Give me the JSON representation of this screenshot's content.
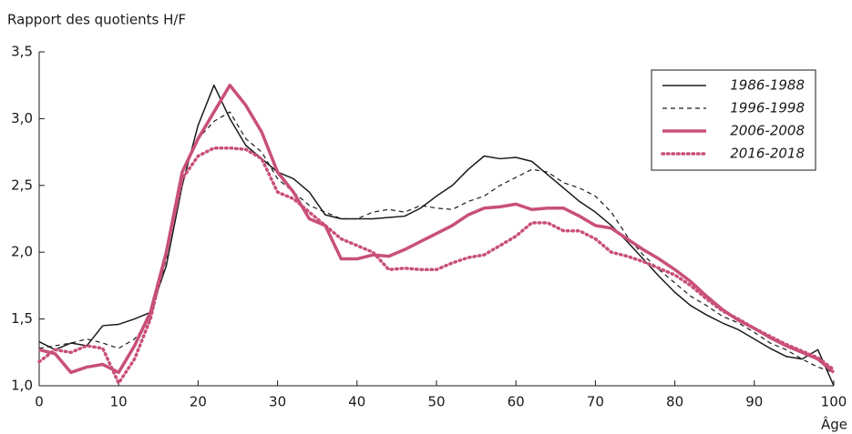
{
  "chart_data": {
    "type": "line",
    "ylabel": "Rapport des quotients H/F",
    "xlabel": "Âge",
    "x": [
      0,
      2,
      4,
      6,
      8,
      10,
      12,
      14,
      16,
      18,
      20,
      22,
      24,
      26,
      28,
      30,
      32,
      34,
      36,
      38,
      40,
      42,
      44,
      46,
      48,
      50,
      52,
      54,
      56,
      58,
      60,
      62,
      64,
      66,
      68,
      70,
      72,
      74,
      76,
      78,
      80,
      82,
      84,
      86,
      88,
      90,
      92,
      94,
      96,
      98,
      100
    ],
    "series": [
      {
        "name": "1986-1988",
        "color": "#1a1a1a",
        "line_style": "solid",
        "line_width": 1.5,
        "values": [
          1.33,
          1.27,
          1.32,
          1.3,
          1.45,
          1.46,
          1.5,
          1.55,
          1.9,
          2.5,
          2.95,
          3.25,
          3.0,
          2.8,
          2.7,
          2.6,
          2.55,
          2.45,
          2.28,
          2.25,
          2.25,
          2.25,
          2.26,
          2.27,
          2.33,
          2.42,
          2.5,
          2.62,
          2.72,
          2.7,
          2.71,
          2.68,
          2.58,
          2.48,
          2.38,
          2.3,
          2.2,
          2.08,
          1.95,
          1.82,
          1.7,
          1.6,
          1.53,
          1.47,
          1.42,
          1.35,
          1.28,
          1.22,
          1.2,
          1.27,
          1.0
        ]
      },
      {
        "name": "1996-1998",
        "color": "#1a1a1a",
        "line_style": "dashed",
        "line_width": 1.2,
        "values": [
          1.28,
          1.3,
          1.32,
          1.35,
          1.32,
          1.28,
          1.35,
          1.5,
          1.95,
          2.6,
          2.85,
          2.98,
          3.05,
          2.85,
          2.75,
          2.55,
          2.45,
          2.35,
          2.3,
          2.25,
          2.25,
          2.3,
          2.32,
          2.3,
          2.35,
          2.33,
          2.32,
          2.38,
          2.42,
          2.5,
          2.56,
          2.62,
          2.6,
          2.52,
          2.48,
          2.42,
          2.3,
          2.12,
          1.98,
          1.87,
          1.77,
          1.67,
          1.6,
          1.52,
          1.47,
          1.4,
          1.32,
          1.27,
          1.2,
          1.14,
          1.1
        ]
      },
      {
        "name": "2006-2008",
        "color": "#c8507a",
        "line_style": "solid",
        "line_width": 3.5,
        "values": [
          1.27,
          1.24,
          1.1,
          1.14,
          1.16,
          1.1,
          1.3,
          1.55,
          2.0,
          2.6,
          2.85,
          3.05,
          3.25,
          3.1,
          2.9,
          2.6,
          2.45,
          2.25,
          2.2,
          1.95,
          1.95,
          1.98,
          1.97,
          2.02,
          2.08,
          2.14,
          2.2,
          2.28,
          2.33,
          2.34,
          2.36,
          2.32,
          2.33,
          2.33,
          2.27,
          2.2,
          2.18,
          2.1,
          2.02,
          1.95,
          1.87,
          1.78,
          1.67,
          1.57,
          1.49,
          1.43,
          1.36,
          1.3,
          1.25,
          1.2,
          1.1
        ]
      },
      {
        "name": "2016-2018",
        "color": "#c8507a",
        "line_style": "dotted",
        "line_width": 3.5,
        "values": [
          1.18,
          1.27,
          1.25,
          1.3,
          1.28,
          1.02,
          1.2,
          1.5,
          2.0,
          2.55,
          2.72,
          2.78,
          2.78,
          2.77,
          2.7,
          2.45,
          2.4,
          2.3,
          2.2,
          2.1,
          2.05,
          2.0,
          1.87,
          1.88,
          1.87,
          1.87,
          1.92,
          1.96,
          1.98,
          2.05,
          2.12,
          2.22,
          2.22,
          2.16,
          2.16,
          2.1,
          2.0,
          1.97,
          1.93,
          1.88,
          1.83,
          1.75,
          1.65,
          1.56,
          1.5,
          1.43,
          1.37,
          1.31,
          1.26,
          1.21,
          1.12
        ]
      }
    ],
    "xlim": [
      0,
      100
    ],
    "xticks": [
      0,
      10,
      20,
      30,
      40,
      50,
      60,
      70,
      80,
      90,
      100
    ],
    "ylim": [
      1,
      3.5
    ],
    "yticks": [
      {
        "value": 1,
        "label": "1,0"
      },
      {
        "value": 1.5,
        "label": "1,5"
      },
      {
        "value": 2,
        "label": "2,0"
      },
      {
        "value": 2.5,
        "label": "2,5"
      },
      {
        "value": 3,
        "label": "3,0"
      },
      {
        "value": 3.5,
        "label": "3,5"
      }
    ],
    "legend": "upper right"
  }
}
